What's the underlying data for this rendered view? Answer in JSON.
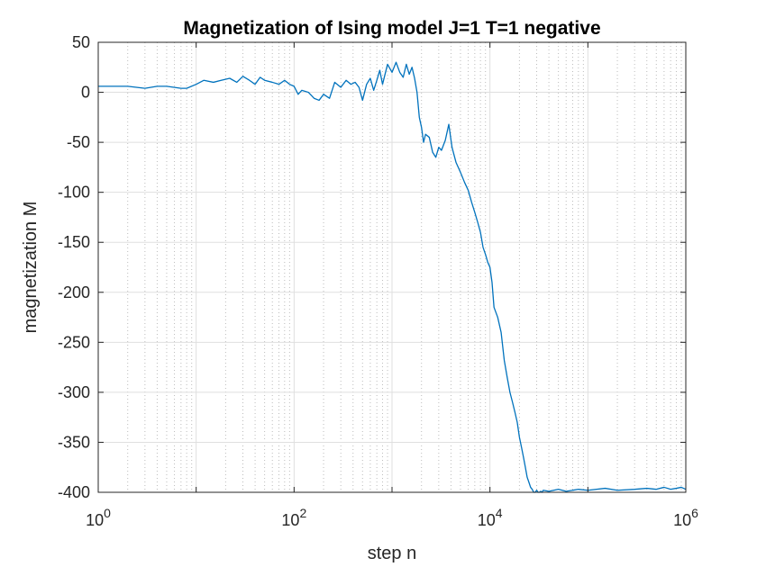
{
  "chart_data": {
    "type": "line",
    "title": "Magnetization of Ising model J=1 T=1 negative",
    "xlabel": "step n",
    "ylabel": "magnetization M",
    "xscale": "log",
    "xlim": [
      1,
      1000000
    ],
    "ylim": [
      -400,
      50
    ],
    "grid": "on",
    "minor_grid": "on",
    "legend": "none",
    "line_color": "#0072BD",
    "x_tick_labels": [
      {
        "base": "10",
        "exp": "0",
        "value": 1
      },
      {
        "base": "10",
        "exp": "2",
        "value": 100
      },
      {
        "base": "10",
        "exp": "4",
        "value": 10000
      },
      {
        "base": "10",
        "exp": "6",
        "value": 1000000
      }
    ],
    "y_ticks": [
      50,
      0,
      -50,
      -100,
      -150,
      -200,
      -250,
      -300,
      -350,
      -400
    ],
    "series": [
      {
        "x": [
          1,
          2,
          3,
          4,
          5,
          7,
          8,
          10,
          12,
          15,
          18,
          22,
          26,
          30,
          35,
          40,
          45,
          50,
          60,
          70,
          80,
          90,
          100,
          110,
          120,
          140,
          160,
          180,
          200,
          230,
          260,
          300,
          340,
          380,
          420,
          460,
          500,
          550,
          600,
          650,
          700,
          750,
          800,
          900,
          1000,
          1100,
          1200,
          1300,
          1400,
          1500,
          1600,
          1700,
          1800,
          1900,
          2000,
          2100,
          2200,
          2400,
          2600,
          2800,
          3000,
          3200,
          3500,
          3800,
          4100,
          4500,
          5000,
          5500,
          6000,
          6500,
          7000,
          7500,
          8000,
          8500,
          9000,
          9500,
          10000,
          10500,
          11000,
          12000,
          13000,
          14000,
          15000,
          16000,
          17000,
          18000,
          19000,
          20000,
          21000,
          22000,
          23000,
          24000,
          25000,
          26000,
          27000,
          28000,
          29000,
          30000,
          31000,
          32000,
          33000,
          34000,
          35000,
          40000,
          50000,
          60000,
          80000,
          100000,
          150000,
          200000,
          300000,
          400000,
          500000,
          600000,
          700000,
          800000,
          900000,
          1000000
        ],
        "y": [
          6,
          6,
          4,
          6,
          6,
          4,
          4,
          8,
          12,
          10,
          12,
          14,
          10,
          16,
          12,
          8,
          15,
          12,
          10,
          8,
          12,
          8,
          6,
          -2,
          2,
          0,
          -6,
          -8,
          -2,
          -6,
          10,
          5,
          12,
          8,
          10,
          5,
          -8,
          8,
          14,
          2,
          12,
          22,
          8,
          28,
          20,
          30,
          20,
          15,
          28,
          18,
          25,
          14,
          0,
          -25,
          -35,
          -50,
          -42,
          -45,
          -60,
          -65,
          -55,
          -58,
          -48,
          -32,
          -55,
          -70,
          -80,
          -90,
          -98,
          -110,
          -120,
          -130,
          -140,
          -155,
          -162,
          -170,
          -175,
          -190,
          -215,
          -225,
          -240,
          -268,
          -285,
          -300,
          -310,
          -320,
          -330,
          -345,
          -355,
          -365,
          -375,
          -385,
          -390,
          -395,
          -397,
          -400,
          -400,
          -398,
          -400,
          -400,
          -399,
          -400,
          -398,
          -399,
          -397,
          -399,
          -397,
          -398,
          -396,
          -398,
          -397,
          -396,
          -397,
          -395,
          -397,
          -396,
          -395,
          -397
        ]
      }
    ]
  }
}
